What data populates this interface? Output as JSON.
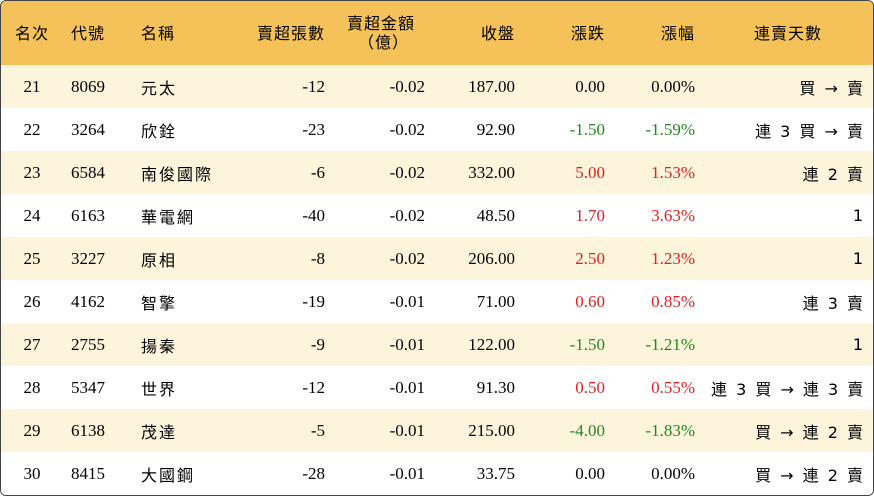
{
  "headers": {
    "rank": "名次",
    "code": "代號",
    "name": "名稱",
    "net_sell_lots": "賣超張數",
    "net_sell_amount_line1": "賣超金額",
    "net_sell_amount_line2": "（億）",
    "close": "收盤",
    "change": "漲跌",
    "change_pct": "漲幅",
    "streak": "連賣天數"
  },
  "rows": [
    {
      "rank": "21",
      "code": "8069",
      "name": "元太",
      "lots": "-12",
      "amount": "-0.02",
      "close": "187.00",
      "change": "0.00",
      "pct": "0.00%",
      "streak": "買 → 賣",
      "dir": "flat"
    },
    {
      "rank": "22",
      "code": "3264",
      "name": "欣銓",
      "lots": "-23",
      "amount": "-0.02",
      "close": "92.90",
      "change": "-1.50",
      "pct": "-1.59%",
      "streak": "連 3 買 → 賣",
      "dir": "down"
    },
    {
      "rank": "23",
      "code": "6584",
      "name": "南俊國際",
      "lots": "-6",
      "amount": "-0.02",
      "close": "332.00",
      "change": "5.00",
      "pct": "1.53%",
      "streak": "連 2 賣",
      "dir": "up"
    },
    {
      "rank": "24",
      "code": "6163",
      "name": "華電網",
      "lots": "-40",
      "amount": "-0.02",
      "close": "48.50",
      "change": "1.70",
      "pct": "3.63%",
      "streak": "1",
      "dir": "up"
    },
    {
      "rank": "25",
      "code": "3227",
      "name": "原相",
      "lots": "-8",
      "amount": "-0.02",
      "close": "206.00",
      "change": "2.50",
      "pct": "1.23%",
      "streak": "1",
      "dir": "up"
    },
    {
      "rank": "26",
      "code": "4162",
      "name": "智擎",
      "lots": "-19",
      "amount": "-0.01",
      "close": "71.00",
      "change": "0.60",
      "pct": "0.85%",
      "streak": "連 3 賣",
      "dir": "up"
    },
    {
      "rank": "27",
      "code": "2755",
      "name": "揚秦",
      "lots": "-9",
      "amount": "-0.01",
      "close": "122.00",
      "change": "-1.50",
      "pct": "-1.21%",
      "streak": "1",
      "dir": "down"
    },
    {
      "rank": "28",
      "code": "5347",
      "name": "世界",
      "lots": "-12",
      "amount": "-0.01",
      "close": "91.30",
      "change": "0.50",
      "pct": "0.55%",
      "streak": "連 3 買 → 連 3 賣",
      "dir": "up"
    },
    {
      "rank": "29",
      "code": "6138",
      "name": "茂達",
      "lots": "-5",
      "amount": "-0.01",
      "close": "215.00",
      "change": "-4.00",
      "pct": "-1.83%",
      "streak": "買 → 連 2 賣",
      "dir": "down"
    },
    {
      "rank": "30",
      "code": "8415",
      "name": "大國鋼",
      "lots": "-28",
      "amount": "-0.01",
      "close": "33.75",
      "change": "0.00",
      "pct": "0.00%",
      "streak": "買 → 連 2 賣",
      "dir": "flat"
    }
  ],
  "colors": {
    "header_bg": "#f5c25a",
    "odd_row_bg": "#fdf4dc",
    "up": "#e02020",
    "down": "#1f8a1f"
  }
}
